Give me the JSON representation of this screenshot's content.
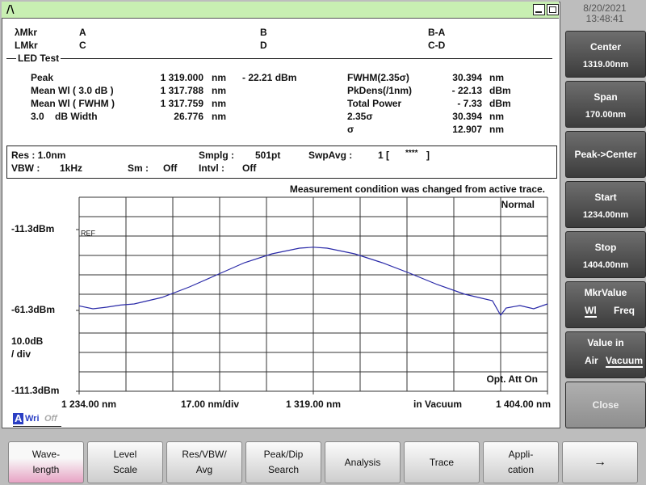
{
  "status_bar": {
    "date": "8/20/2021",
    "time": "13:48:41"
  },
  "markers": {
    "lambda_label": "λMkr",
    "l_label": "LMkr",
    "a": "A",
    "b": "B",
    "b_a": "B-A",
    "c": "C",
    "d": "D",
    "c_d": "C-D"
  },
  "section_title": "LED Test",
  "results_left": [
    {
      "label": "Peak",
      "value": "1 319.000",
      "unit": "nm",
      "level": "- 22.21 dBm"
    },
    {
      "label": "Mean Wl ( 3.0 dB )",
      "value": "1 317.788",
      "unit": "nm"
    },
    {
      "label": "Mean Wl ( FWHM )",
      "value": "1 317.759",
      "unit": "nm"
    },
    {
      "label": "3.0    dB Width",
      "value": "26.776",
      "unit": "nm"
    }
  ],
  "results_right": [
    {
      "label": "FWHM(2.35σ)",
      "value": "30.394",
      "unit": "nm"
    },
    {
      "label": "PkDens(/1nm)",
      "value": "- 22.13",
      "unit": "dBm"
    },
    {
      "label": "Total Power",
      "value": "- 7.33",
      "unit": "dBm"
    },
    {
      "label": "2.35σ",
      "value": "30.394",
      "unit": "nm"
    },
    {
      "label": "σ",
      "value": "12.907",
      "unit": "nm"
    }
  ],
  "settings": {
    "res": "Res : 1.0nm",
    "smplg_label": "Smplg :",
    "smplg": "501pt",
    "swpavg_label": "SwpAvg :",
    "swpavg": "1 [",
    "swpavg_stars": "****",
    "swpavg_close": "]",
    "vbw_label": "VBW :",
    "vbw": "1kHz",
    "sm_label": "Sm :",
    "sm": "Off",
    "intvl_label": "Intvl :",
    "intvl": "Off"
  },
  "chart_data": {
    "type": "line",
    "message": "Measurement condition was changed from active trace.",
    "mode": "Normal",
    "ref_label": "REF",
    "y_scale": "10.0dB",
    "y_scale_unit": "/ div",
    "att": "Opt. Att On",
    "x_scale": "17.00 nm/div",
    "medium": "in Vacuum",
    "x": [
      1234,
      1239,
      1244,
      1249,
      1254,
      1264,
      1274,
      1284,
      1294,
      1304,
      1314,
      1319,
      1324,
      1334,
      1344,
      1354,
      1364,
      1374,
      1384,
      1387,
      1389,
      1394,
      1399,
      1404
    ],
    "values": [
      -58.5,
      -60.3,
      -59.3,
      -58.0,
      -57.3,
      -53.3,
      -46.8,
      -39.3,
      -31.8,
      -26.3,
      -22.8,
      -22.2,
      -22.8,
      -26.3,
      -31.8,
      -38.3,
      -45.3,
      -51.3,
      -55.3,
      -64.3,
      -59.8,
      -58.3,
      -60.3,
      -57.3
    ],
    "color": "#2a2aa8",
    "xlim": [
      1234,
      1404
    ],
    "ylim": [
      -111.3,
      8.7
    ],
    "xticks": [
      {
        "value": 1234,
        "label": "1 234.00 nm"
      },
      {
        "value": 1319,
        "label": "1 319.00 nm"
      },
      {
        "value": 1404,
        "label": "1 404.00 nm"
      }
    ],
    "yticks": [
      {
        "value": -11.3,
        "label": "-11.3dBm"
      },
      {
        "value": -61.3,
        "label": "-61.3dBm"
      },
      {
        "value": -111.3,
        "label": "-111.3dBm"
      }
    ]
  },
  "trace_status": {
    "trace": "A",
    "mode": "Wri",
    "state": "Off"
  },
  "side_buttons": [
    {
      "title": "Center",
      "value": "1319.00nm"
    },
    {
      "title": "Span",
      "value": "170.00nm"
    },
    {
      "title": "Peak->Center"
    },
    {
      "title": "Start",
      "value": "1234.00nm"
    },
    {
      "title": "Stop",
      "value": "1404.00nm"
    },
    {
      "title": "MkrValue",
      "options": [
        "Wl",
        "Freq"
      ],
      "selected": 0
    },
    {
      "title": "Value in",
      "options": [
        "Air",
        "Vacuum"
      ],
      "selected": 1
    },
    {
      "title": "Close"
    }
  ],
  "bottom_buttons": {
    "selected": 0,
    "items": [
      [
        "Wave-",
        "length"
      ],
      [
        "Level",
        "Scale"
      ],
      [
        "Res/VBW/",
        "Avg"
      ],
      [
        "Peak/Dip",
        "Search"
      ],
      [
        "Analysis"
      ],
      [
        "Trace"
      ],
      [
        "Appli-",
        "cation"
      ],
      [
        "→"
      ]
    ]
  }
}
